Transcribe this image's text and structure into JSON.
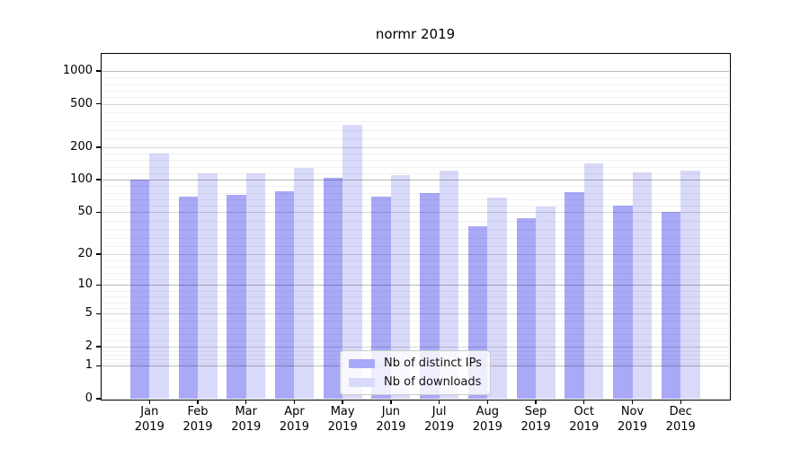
{
  "chart_data": {
    "type": "bar",
    "title": "normr 2019",
    "categories": [
      "Jan 2019",
      "Feb 2019",
      "Mar 2019",
      "Apr 2019",
      "May 2019",
      "Jun 2019",
      "Jul 2019",
      "Aug 2019",
      "Sep 2019",
      "Oct 2019",
      "Nov 2019",
      "Dec 2019"
    ],
    "series": [
      {
        "name": "Nb of distinct IPs",
        "color": "#a9a9f7",
        "values": [
          100,
          70,
          72,
          78,
          105,
          70,
          75,
          37,
          44,
          77,
          57,
          50
        ]
      },
      {
        "name": "Nb of downloads",
        "color": "#d9d9f9",
        "values": [
          175,
          115,
          114,
          128,
          320,
          110,
          121,
          68,
          56,
          141,
          116,
          121
        ]
      }
    ],
    "yscale": "log1p",
    "yticks": [
      0,
      1,
      2,
      5,
      10,
      20,
      50,
      100,
      200,
      500,
      1000
    ],
    "ylim": [
      0,
      1434
    ],
    "grid": true,
    "legend_position": "lower-center"
  },
  "colors": {
    "bar_distinct_ips": "#a9a9f7",
    "bar_downloads": "#d9d9f9",
    "grid_decade": "rgba(0,0,0,0.27)",
    "grid_labeled": "rgba(0,0,0,0.16)",
    "grid_minor": "rgba(0,0,0,0.055)",
    "spine": "#000000",
    "legend_border": "#cccccc",
    "background": "#ffffff"
  }
}
